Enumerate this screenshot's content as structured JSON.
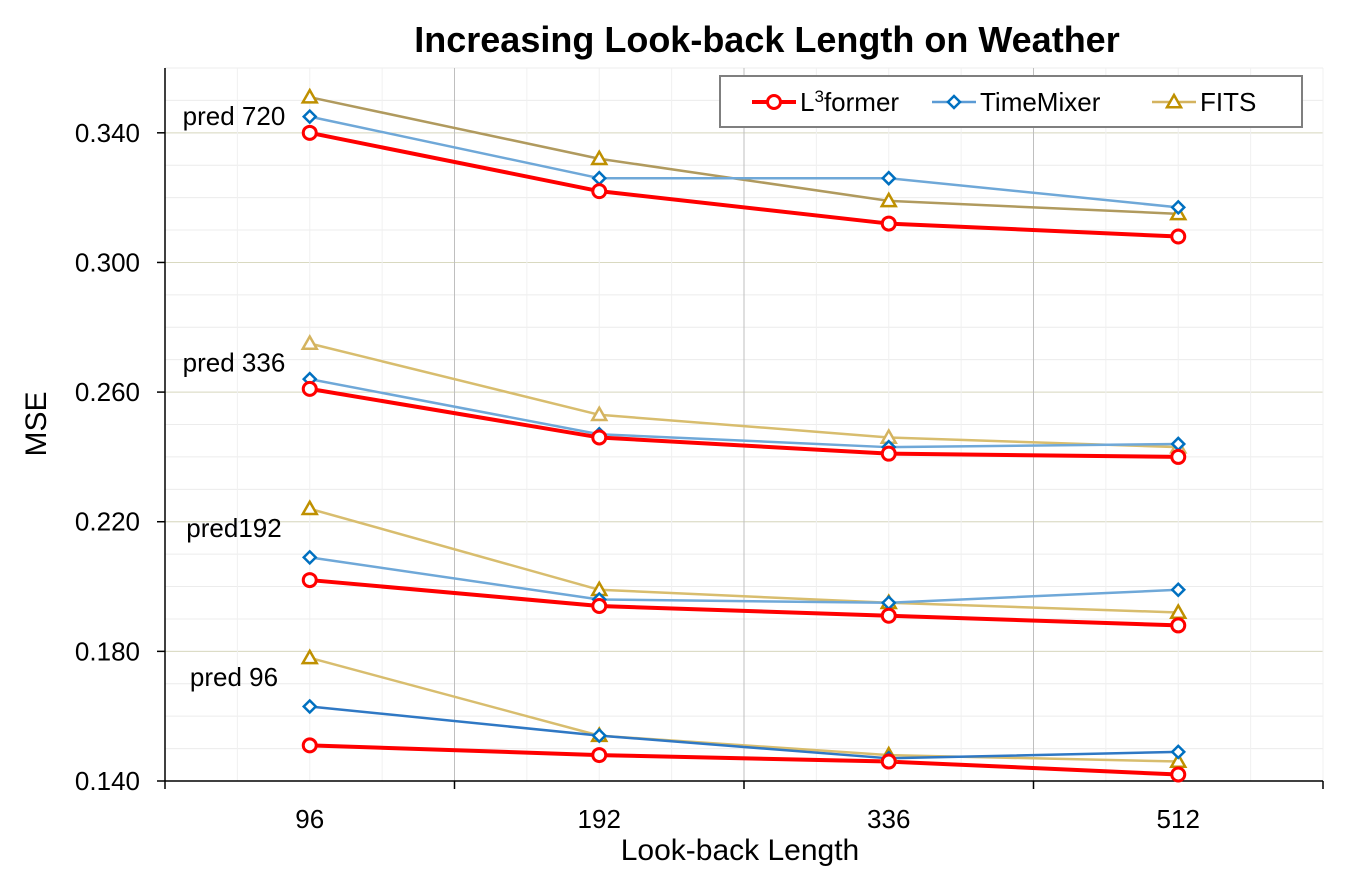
{
  "chart_data": {
    "type": "line",
    "title": "Increasing Look-back Length on Weather",
    "xlabel": "Look-back Length",
    "ylabel": "MSE",
    "categories": [
      "96",
      "192",
      "336",
      "512"
    ],
    "ylim": [
      0.14,
      0.36
    ],
    "yticks": [
      "0.140",
      "0.180",
      "0.220",
      "0.260",
      "0.300",
      "0.340"
    ],
    "ytick_values": [
      0.14,
      0.18,
      0.22,
      0.26,
      0.3,
      0.34
    ],
    "grid": true,
    "legend_position": "top-right",
    "legend": [
      {
        "key": "l3former",
        "name_main": "L",
        "name_sup": "3",
        "name_rest": "former",
        "color": "#ff0000",
        "marker": "circle"
      },
      {
        "key": "timemixer",
        "name_main": "TimeMixer",
        "name_sup": "",
        "name_rest": "",
        "color": "#5b9bd5",
        "marker": "diamond"
      },
      {
        "key": "fits",
        "name_main": "FITS",
        "name_sup": "",
        "name_rest": "",
        "color": "#d4b35f",
        "marker": "triangle"
      }
    ],
    "groups": [
      {
        "annotation": "pred 720",
        "series": [
          {
            "key": "l3former",
            "values": [
              0.34,
              0.322,
              0.312,
              0.308
            ],
            "color": "#ff0000",
            "marker_color": "#ff0000"
          },
          {
            "key": "timemixer",
            "values": [
              0.345,
              0.326,
              0.326,
              0.317
            ],
            "color": "#6fa8d8",
            "marker_color": "#0070c0"
          },
          {
            "key": "fits",
            "values": [
              0.351,
              0.332,
              0.319,
              0.315
            ],
            "color": "#b09a5e",
            "marker_color": "#bf9000"
          }
        ]
      },
      {
        "annotation": "pred 336",
        "series": [
          {
            "key": "l3former",
            "values": [
              0.261,
              0.246,
              0.241,
              0.24
            ],
            "color": "#ff0000",
            "marker_color": "#ff0000"
          },
          {
            "key": "timemixer",
            "values": [
              0.264,
              0.247,
              0.243,
              0.244
            ],
            "color": "#6fa8d8",
            "marker_color": "#0070c0"
          },
          {
            "key": "fits",
            "values": [
              0.275,
              0.253,
              0.246,
              0.243
            ],
            "color": "#d8bd6e",
            "marker_color": "#d4b35f"
          }
        ]
      },
      {
        "annotation": "pred192",
        "series": [
          {
            "key": "l3former",
            "values": [
              0.202,
              0.194,
              0.191,
              0.188
            ],
            "color": "#ff0000",
            "marker_color": "#ff0000"
          },
          {
            "key": "timemixer",
            "values": [
              0.209,
              0.196,
              0.195,
              0.199
            ],
            "color": "#6fa8d8",
            "marker_color": "#0070c0"
          },
          {
            "key": "fits",
            "values": [
              0.224,
              0.199,
              0.195,
              0.192
            ],
            "color": "#d8bd6e",
            "marker_color": "#bf9000"
          }
        ]
      },
      {
        "annotation": "pred 96",
        "series": [
          {
            "key": "l3former",
            "values": [
              0.151,
              0.148,
              0.146,
              0.142
            ],
            "color": "#ff0000",
            "marker_color": "#ff0000"
          },
          {
            "key": "timemixer",
            "values": [
              0.163,
              0.154,
              0.147,
              0.149
            ],
            "color": "#2f78c4",
            "marker_color": "#0070c0"
          },
          {
            "key": "fits",
            "values": [
              0.178,
              0.154,
              0.148,
              0.146
            ],
            "color": "#d8bd6e",
            "marker_color": "#bf9000"
          }
        ]
      }
    ]
  }
}
